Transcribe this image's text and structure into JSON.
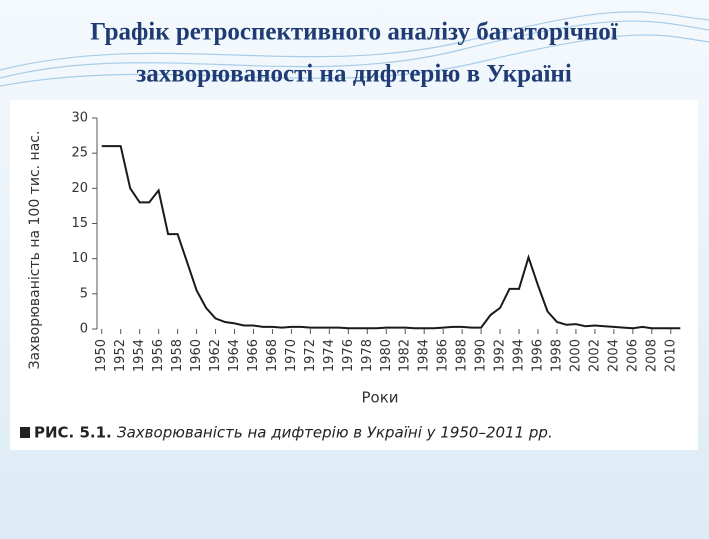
{
  "slide": {
    "title_lines": [
      "Графік ретроспективного аналізу багаторічної",
      "захворюваності на дифтерію в Україні"
    ]
  },
  "chart_data": {
    "type": "line",
    "figure_label": "РИС. 5.1.",
    "title": "Захворюваність на дифтерію в Україні у 1950–2011 рр.",
    "y_label": "Захворюваність на 100 тис. нас.",
    "x_label": "Роки",
    "color": "#1a1a1a",
    "x": [
      1950,
      1951,
      1952,
      1953,
      1954,
      1955,
      1956,
      1957,
      1958,
      1959,
      1960,
      1961,
      1962,
      1963,
      1964,
      1965,
      1966,
      1967,
      1968,
      1969,
      1970,
      1971,
      1972,
      1973,
      1974,
      1975,
      1976,
      1977,
      1978,
      1979,
      1980,
      1981,
      1982,
      1983,
      1984,
      1985,
      1986,
      1987,
      1988,
      1989,
      1990,
      1991,
      1992,
      1993,
      1994,
      1995,
      1996,
      1997,
      1998,
      1999,
      2000,
      2001,
      2002,
      2003,
      2004,
      2005,
      2006,
      2007,
      2008,
      2009,
      2010,
      2011
    ],
    "values": [
      26,
      26,
      26,
      20,
      18,
      18,
      19.7,
      13.5,
      13.5,
      9.5,
      5.5,
      3,
      1.5,
      1,
      0.8,
      0.5,
      0.5,
      0.3,
      0.3,
      0.2,
      0.3,
      0.3,
      0.2,
      0.2,
      0.2,
      0.2,
      0.1,
      0.1,
      0.1,
      0.1,
      0.2,
      0.2,
      0.2,
      0.1,
      0.1,
      0.1,
      0.2,
      0.3,
      0.3,
      0.2,
      0.2,
      2,
      3,
      5.7,
      5.7,
      10.2,
      6.2,
      2.5,
      1,
      0.6,
      0.7,
      0.4,
      0.5,
      0.4,
      0.3,
      0.2,
      0.1,
      0.3,
      0.1,
      0.1,
      0.1,
      0.1
    ],
    "xlim": [
      1949.5,
      2011.5
    ],
    "ylim": [
      0,
      30
    ],
    "xticks": [
      1950,
      1952,
      1954,
      1956,
      1958,
      1960,
      1962,
      1964,
      1966,
      1968,
      1970,
      1972,
      1974,
      1976,
      1978,
      1980,
      1982,
      1984,
      1986,
      1988,
      1990,
      1992,
      1994,
      1996,
      1998,
      2000,
      2002,
      2004,
      2006,
      2008,
      2010
    ],
    "yticks": [
      0,
      5,
      10,
      15,
      20,
      25,
      30
    ]
  }
}
